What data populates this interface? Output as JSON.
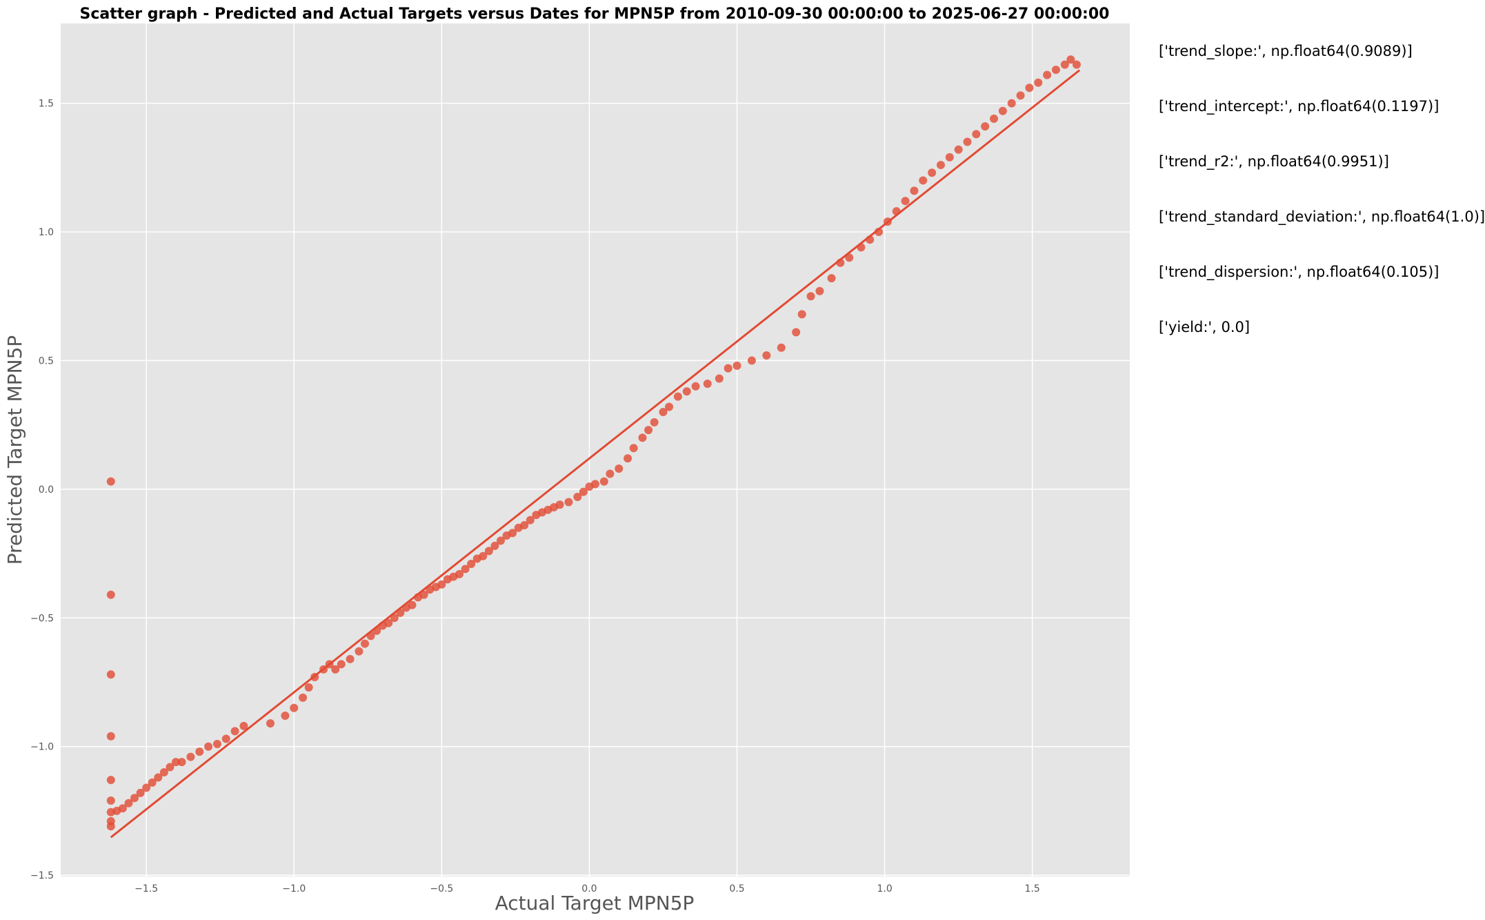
{
  "chart_data": {
    "type": "scatter",
    "title": "Scatter graph - Predicted and Actual Targets versus Dates for MPN5P from 2010-09-30 00:00:00 to 2025-06-27 00:00:00",
    "xlabel": "Actual Target MPN5P",
    "ylabel": "Predicted Target MPN5P",
    "xlim": [
      -1.79,
      1.83
    ],
    "ylim": [
      -1.505,
      1.81
    ],
    "xticks": [
      -1.5,
      -1.0,
      -0.5,
      0.0,
      0.5,
      1.0,
      1.5
    ],
    "xtick_labels": [
      "−1.5",
      "−1.0",
      "−0.5",
      "0.0",
      "0.5",
      "1.0",
      "1.5"
    ],
    "yticks": [
      -1.5,
      -1.0,
      -0.5,
      0.0,
      0.5,
      1.0,
      1.5
    ],
    "ytick_labels": [
      "−1.5",
      "−1.0",
      "−0.5",
      "0.0",
      "0.5",
      "1.0",
      "1.5"
    ],
    "grid": true,
    "colors": {
      "background": "#E5E5E5",
      "grid": "#FFFFFF",
      "points": "#E24A33",
      "trend_line": "#E24A33",
      "tick_label": "#555555",
      "axis_label": "#555555"
    },
    "trend_line": {
      "slope": 0.9089,
      "intercept": 0.1197,
      "x_range": [
        -1.62,
        1.66
      ]
    },
    "points": [
      {
        "x": -1.62,
        "y": 0.03
      },
      {
        "x": -1.62,
        "y": -0.41
      },
      {
        "x": -1.62,
        "y": -0.72
      },
      {
        "x": -1.62,
        "y": -0.96
      },
      {
        "x": -1.62,
        "y": -1.13
      },
      {
        "x": -1.62,
        "y": -1.21
      },
      {
        "x": -1.62,
        "y": -1.29
      },
      {
        "x": -1.62,
        "y": -1.31
      },
      {
        "x": -1.62,
        "y": -1.255
      },
      {
        "x": -1.6,
        "y": -1.25
      },
      {
        "x": -1.58,
        "y": -1.24
      },
      {
        "x": -1.56,
        "y": -1.22
      },
      {
        "x": -1.54,
        "y": -1.2
      },
      {
        "x": -1.52,
        "y": -1.18
      },
      {
        "x": -1.5,
        "y": -1.16
      },
      {
        "x": -1.48,
        "y": -1.14
      },
      {
        "x": -1.46,
        "y": -1.12
      },
      {
        "x": -1.44,
        "y": -1.1
      },
      {
        "x": -1.42,
        "y": -1.08
      },
      {
        "x": -1.4,
        "y": -1.06
      },
      {
        "x": -1.38,
        "y": -1.06
      },
      {
        "x": -1.35,
        "y": -1.04
      },
      {
        "x": -1.32,
        "y": -1.02
      },
      {
        "x": -1.29,
        "y": -1.0
      },
      {
        "x": -1.26,
        "y": -0.99
      },
      {
        "x": -1.23,
        "y": -0.97
      },
      {
        "x": -1.2,
        "y": -0.94
      },
      {
        "x": -1.17,
        "y": -0.92
      },
      {
        "x": -1.08,
        "y": -0.91
      },
      {
        "x": -1.03,
        "y": -0.88
      },
      {
        "x": -1.0,
        "y": -0.85
      },
      {
        "x": -0.97,
        "y": -0.81
      },
      {
        "x": -0.95,
        "y": -0.77
      },
      {
        "x": -0.93,
        "y": -0.73
      },
      {
        "x": -0.9,
        "y": -0.7
      },
      {
        "x": -0.88,
        "y": -0.68
      },
      {
        "x": -0.86,
        "y": -0.7
      },
      {
        "x": -0.84,
        "y": -0.68
      },
      {
        "x": -0.81,
        "y": -0.66
      },
      {
        "x": -0.78,
        "y": -0.63
      },
      {
        "x": -0.76,
        "y": -0.6
      },
      {
        "x": -0.74,
        "y": -0.57
      },
      {
        "x": -0.72,
        "y": -0.55
      },
      {
        "x": -0.7,
        "y": -0.53
      },
      {
        "x": -0.68,
        "y": -0.52
      },
      {
        "x": -0.66,
        "y": -0.5
      },
      {
        "x": -0.64,
        "y": -0.48
      },
      {
        "x": -0.62,
        "y": -0.46
      },
      {
        "x": -0.6,
        "y": -0.45
      },
      {
        "x": -0.58,
        "y": -0.42
      },
      {
        "x": -0.56,
        "y": -0.41
      },
      {
        "x": -0.54,
        "y": -0.39
      },
      {
        "x": -0.52,
        "y": -0.38
      },
      {
        "x": -0.5,
        "y": -0.37
      },
      {
        "x": -0.48,
        "y": -0.35
      },
      {
        "x": -0.46,
        "y": -0.34
      },
      {
        "x": -0.44,
        "y": -0.33
      },
      {
        "x": -0.42,
        "y": -0.31
      },
      {
        "x": -0.4,
        "y": -0.29
      },
      {
        "x": -0.38,
        "y": -0.27
      },
      {
        "x": -0.36,
        "y": -0.26
      },
      {
        "x": -0.34,
        "y": -0.24
      },
      {
        "x": -0.32,
        "y": -0.22
      },
      {
        "x": -0.3,
        "y": -0.2
      },
      {
        "x": -0.28,
        "y": -0.18
      },
      {
        "x": -0.26,
        "y": -0.17
      },
      {
        "x": -0.24,
        "y": -0.15
      },
      {
        "x": -0.22,
        "y": -0.14
      },
      {
        "x": -0.2,
        "y": -0.12
      },
      {
        "x": -0.18,
        "y": -0.1
      },
      {
        "x": -0.16,
        "y": -0.09
      },
      {
        "x": -0.14,
        "y": -0.08
      },
      {
        "x": -0.12,
        "y": -0.07
      },
      {
        "x": -0.1,
        "y": -0.06
      },
      {
        "x": -0.07,
        "y": -0.05
      },
      {
        "x": -0.04,
        "y": -0.03
      },
      {
        "x": -0.02,
        "y": -0.01
      },
      {
        "x": 0.0,
        "y": 0.01
      },
      {
        "x": 0.02,
        "y": 0.02
      },
      {
        "x": 0.05,
        "y": 0.03
      },
      {
        "x": 0.07,
        "y": 0.06
      },
      {
        "x": 0.1,
        "y": 0.08
      },
      {
        "x": 0.13,
        "y": 0.12
      },
      {
        "x": 0.15,
        "y": 0.16
      },
      {
        "x": 0.18,
        "y": 0.2
      },
      {
        "x": 0.2,
        "y": 0.23
      },
      {
        "x": 0.22,
        "y": 0.26
      },
      {
        "x": 0.25,
        "y": 0.3
      },
      {
        "x": 0.27,
        "y": 0.32
      },
      {
        "x": 0.3,
        "y": 0.36
      },
      {
        "x": 0.33,
        "y": 0.38
      },
      {
        "x": 0.36,
        "y": 0.4
      },
      {
        "x": 0.4,
        "y": 0.41
      },
      {
        "x": 0.44,
        "y": 0.43
      },
      {
        "x": 0.47,
        "y": 0.47
      },
      {
        "x": 0.5,
        "y": 0.48
      },
      {
        "x": 0.55,
        "y": 0.5
      },
      {
        "x": 0.6,
        "y": 0.52
      },
      {
        "x": 0.65,
        "y": 0.55
      },
      {
        "x": 0.7,
        "y": 0.61
      },
      {
        "x": 0.72,
        "y": 0.68
      },
      {
        "x": 0.75,
        "y": 0.75
      },
      {
        "x": 0.78,
        "y": 0.77
      },
      {
        "x": 0.82,
        "y": 0.82
      },
      {
        "x": 0.85,
        "y": 0.88
      },
      {
        "x": 0.88,
        "y": 0.9
      },
      {
        "x": 0.92,
        "y": 0.94
      },
      {
        "x": 0.95,
        "y": 0.97
      },
      {
        "x": 0.98,
        "y": 1.0
      },
      {
        "x": 1.01,
        "y": 1.04
      },
      {
        "x": 1.04,
        "y": 1.08
      },
      {
        "x": 1.07,
        "y": 1.12
      },
      {
        "x": 1.1,
        "y": 1.16
      },
      {
        "x": 1.13,
        "y": 1.2
      },
      {
        "x": 1.16,
        "y": 1.23
      },
      {
        "x": 1.19,
        "y": 1.26
      },
      {
        "x": 1.22,
        "y": 1.29
      },
      {
        "x": 1.25,
        "y": 1.32
      },
      {
        "x": 1.28,
        "y": 1.35
      },
      {
        "x": 1.31,
        "y": 1.38
      },
      {
        "x": 1.34,
        "y": 1.41
      },
      {
        "x": 1.37,
        "y": 1.44
      },
      {
        "x": 1.4,
        "y": 1.47
      },
      {
        "x": 1.43,
        "y": 1.5
      },
      {
        "x": 1.46,
        "y": 1.53
      },
      {
        "x": 1.49,
        "y": 1.56
      },
      {
        "x": 1.52,
        "y": 1.58
      },
      {
        "x": 1.55,
        "y": 1.61
      },
      {
        "x": 1.58,
        "y": 1.63
      },
      {
        "x": 1.61,
        "y": 1.65
      },
      {
        "x": 1.63,
        "y": 1.67
      },
      {
        "x": 1.65,
        "y": 1.65
      }
    ]
  },
  "annotations": [
    "['trend_slope:', np.float64(0.9089)]",
    "['trend_intercept:', np.float64(0.1197)]",
    "['trend_r2:', np.float64(0.9951)]",
    "['trend_standard_deviation:', np.float64(1.0)]",
    "['trend_dispersion:', np.float64(0.105)]",
    "['yield:', 0.0]"
  ]
}
